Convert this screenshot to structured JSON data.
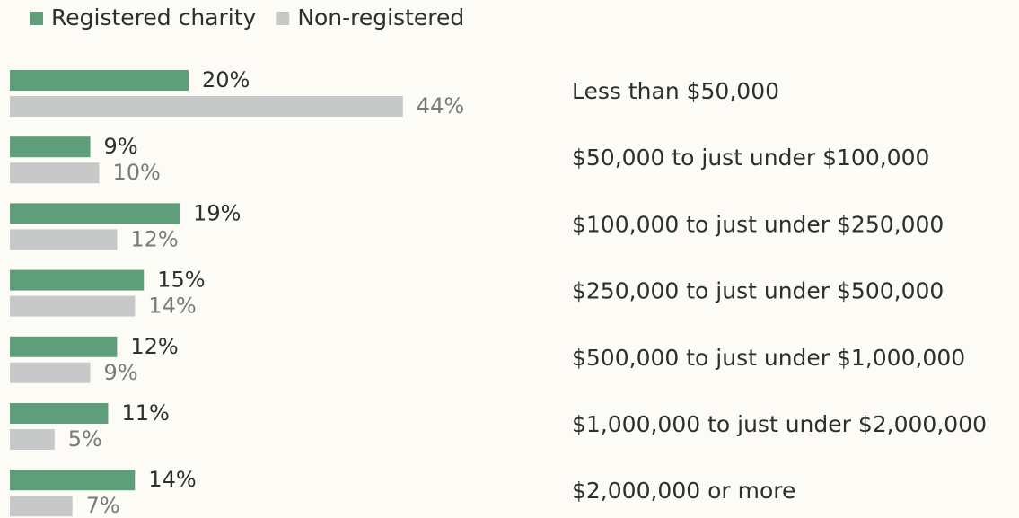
{
  "chart_data": {
    "type": "bar",
    "orientation": "horizontal",
    "categories": [
      "Less than $50,000",
      "$50,000 to just under $100,000",
      "$100,000 to just under $250,000",
      "$250,000 to just under $500,000",
      "$500,000 to just under $1,000,000",
      "$1,000,000 to just under $2,000,000",
      "$2,000,000 or more"
    ],
    "series": [
      {
        "name": "Registered charity",
        "color": "#5f9e7a",
        "values": [
          20,
          9,
          19,
          15,
          12,
          11,
          14
        ],
        "value_labels": [
          "20%",
          "9%",
          "19%",
          "15%",
          "12%",
          "11%",
          "14%"
        ]
      },
      {
        "name": "Non-registered",
        "color": "#c7c9c9",
        "values": [
          44,
          10,
          12,
          14,
          9,
          5,
          7
        ],
        "value_labels": [
          "44%",
          "10%",
          "12%",
          "14%",
          "9%",
          "5%",
          "7%"
        ]
      }
    ],
    "legend": "top-left"
  }
}
